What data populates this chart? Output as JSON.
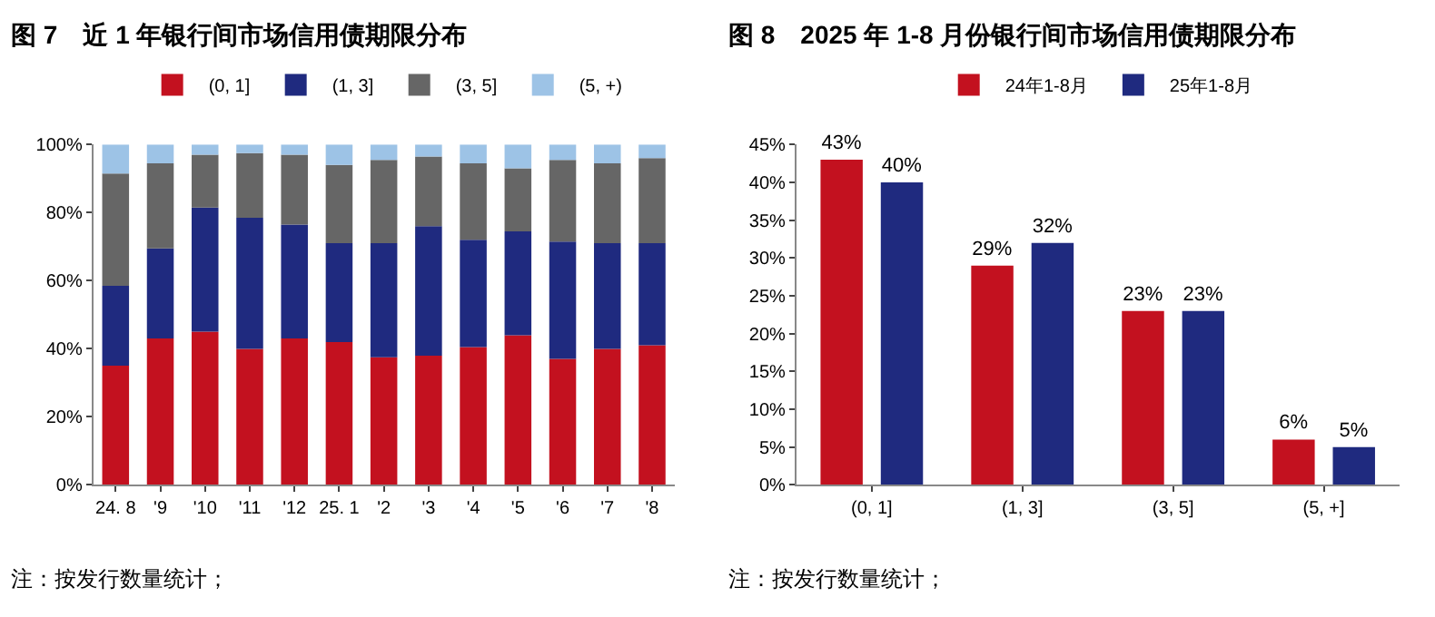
{
  "chart_data": [
    {
      "type": "bar",
      "title": "图 7　近 1 年银行间市场信用债期限分布",
      "stacked": true,
      "legend": "top",
      "categories": [
        "24. 8",
        "'9",
        "'10",
        "'11",
        "'12",
        "25. 1",
        "'2",
        "'3",
        "'4",
        "'5",
        "'6",
        "'7",
        "'8"
      ],
      "series": [
        {
          "name": "(0, 1]",
          "color": "#c3111f",
          "values": [
            35,
            43,
            45,
            40,
            43,
            42,
            37.5,
            38,
            40.5,
            44,
            37,
            40,
            41
          ]
        },
        {
          "name": "(1, 3]",
          "color": "#1f2a7f",
          "values": [
            23.5,
            26.5,
            36.5,
            38.5,
            33.5,
            29,
            33.5,
            38,
            31.5,
            30.5,
            34.5,
            31,
            30
          ]
        },
        {
          "name": "(3, 5]",
          "color": "#666666",
          "values": [
            33,
            25,
            15.5,
            19,
            20.5,
            23,
            24.5,
            20.5,
            22.5,
            18.5,
            24,
            23.5,
            25
          ]
        },
        {
          "name": "(5, +)",
          "color": "#9dc3e6",
          "values": [
            8.5,
            5.5,
            3,
            2.5,
            3,
            6,
            4.5,
            3.5,
            5.5,
            7,
            4.5,
            5.5,
            4
          ]
        }
      ],
      "ylim": [
        0,
        100
      ],
      "yticks": [
        {
          "value": 0,
          "label": "0%"
        },
        {
          "value": 20,
          "label": "20%"
        },
        {
          "value": 40,
          "label": "40%"
        },
        {
          "value": 60,
          "label": "60%"
        },
        {
          "value": 80,
          "label": "80%"
        },
        {
          "value": 100,
          "label": "100%"
        }
      ],
      "grid": false,
      "annotations": [
        "注：按发行数量统计；"
      ]
    },
    {
      "type": "bar",
      "title": "图 8　2025 年 1-8 月份银行间市场信用债期限分布",
      "legend": "top",
      "categories": [
        "(0, 1]",
        "(1, 3]",
        "(3, 5]",
        "(5, +]"
      ],
      "series": [
        {
          "name": "24年1-8月",
          "color": "#c3111f",
          "values": [
            43,
            29,
            23,
            6
          ],
          "value_labels": [
            "43%",
            "29%",
            "23%",
            "6%"
          ]
        },
        {
          "name": "25年1-8月",
          "color": "#1f2a7f",
          "values": [
            40,
            32,
            23,
            5
          ],
          "value_labels": [
            "40%",
            "32%",
            "23%",
            "5%"
          ]
        }
      ],
      "ylim": [
        0,
        45
      ],
      "yticks": [
        {
          "value": 0,
          "label": "0%"
        },
        {
          "value": 5,
          "label": "5%"
        },
        {
          "value": 10,
          "label": "10%"
        },
        {
          "value": 15,
          "label": "15%"
        },
        {
          "value": 20,
          "label": "20%"
        },
        {
          "value": 25,
          "label": "25%"
        },
        {
          "value": 30,
          "label": "30%"
        },
        {
          "value": 35,
          "label": "35%"
        },
        {
          "value": 40,
          "label": "40%"
        },
        {
          "value": 45,
          "label": "45%"
        }
      ],
      "grid": false,
      "annotations": [
        "注：按发行数量统计；"
      ]
    }
  ]
}
